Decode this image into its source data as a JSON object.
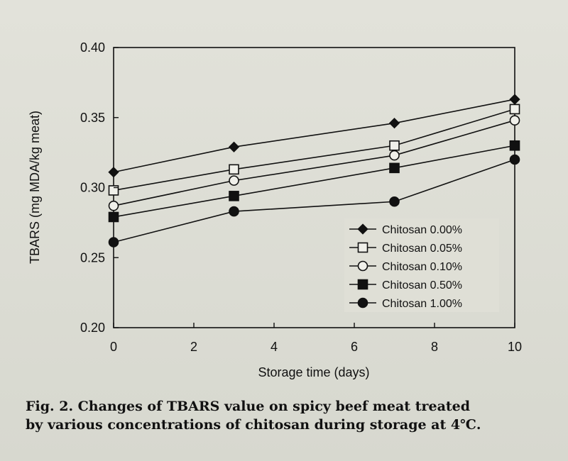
{
  "caption": {
    "line1": "Fig. 2. Changes of TBARS value on spicy beef meat treated",
    "line2": "by various concentrations of chitosan during storage at 4℃."
  },
  "chart_data": {
    "type": "line",
    "xlabel": "Storage time (days)",
    "ylabel": "TBARS (mg MDA/kg meat)",
    "xlim": [
      0,
      10
    ],
    "ylim": [
      0.2,
      0.4
    ],
    "xticks": [
      0,
      2,
      4,
      6,
      8,
      10
    ],
    "yticks": [
      0.2,
      0.25,
      0.3,
      0.35,
      0.4
    ],
    "ytick_labels": [
      "0.20",
      "0.25",
      "0.30",
      "0.35",
      "0.40"
    ],
    "x": [
      0,
      3,
      7,
      10
    ],
    "legend_position": "lower-right",
    "grid": false,
    "series": [
      {
        "name": "Chitosan 0.00%",
        "marker": "diamond",
        "fill": "filled",
        "values": [
          0.311,
          0.329,
          0.346,
          0.363
        ]
      },
      {
        "name": "Chitosan 0.05%",
        "marker": "square",
        "fill": "open",
        "values": [
          0.298,
          0.313,
          0.33,
          0.356
        ]
      },
      {
        "name": "Chitosan 0.10%",
        "marker": "circle",
        "fill": "open",
        "values": [
          0.287,
          0.305,
          0.323,
          0.348
        ]
      },
      {
        "name": "Chitosan 0.50%",
        "marker": "square",
        "fill": "filled",
        "values": [
          0.279,
          0.294,
          0.314,
          0.33
        ]
      },
      {
        "name": "Chitosan 1.00%",
        "marker": "circle",
        "fill": "filled",
        "values": [
          0.261,
          0.283,
          0.29,
          0.32
        ]
      }
    ]
  }
}
